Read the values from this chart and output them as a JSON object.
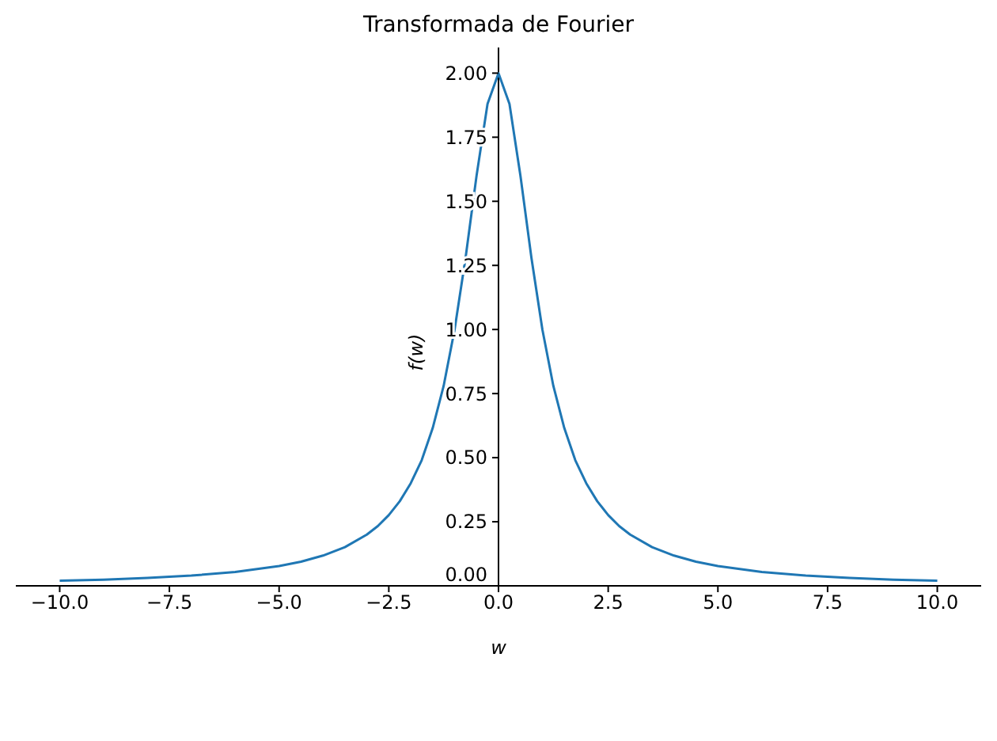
{
  "chart_data": {
    "type": "line",
    "title": "Transformada de Fourier",
    "xlabel": "w",
    "ylabel": "f(w)",
    "x": [
      -10,
      -9,
      -8,
      -7,
      -6,
      -5,
      -4.5,
      -4,
      -3.5,
      -3,
      -2.75,
      -2.5,
      -2.25,
      -2,
      -1.75,
      -1.5,
      -1.25,
      -1,
      -0.75,
      -0.5,
      -0.25,
      0,
      0.25,
      0.5,
      0.75,
      1,
      1.25,
      1.5,
      1.75,
      2,
      2.25,
      2.5,
      2.75,
      3,
      3.5,
      4,
      4.5,
      5,
      6,
      7,
      8,
      9,
      10
    ],
    "series": [
      {
        "color": "#1f77b4",
        "values": [
          0.02,
          0.024,
          0.031,
          0.04,
          0.054,
          0.077,
          0.094,
          0.118,
          0.151,
          0.2,
          0.233,
          0.276,
          0.33,
          0.4,
          0.49,
          0.615,
          0.78,
          1.0,
          1.28,
          1.6,
          1.88,
          2.0,
          1.88,
          1.6,
          1.28,
          1.0,
          0.78,
          0.615,
          0.49,
          0.4,
          0.33,
          0.276,
          0.233,
          0.2,
          0.151,
          0.118,
          0.094,
          0.077,
          0.054,
          0.04,
          0.031,
          0.024,
          0.02
        ]
      }
    ],
    "xlim": [
      -11,
      11
    ],
    "ylim": [
      0,
      2.1
    ],
    "xticks": [
      {
        "value": -10,
        "label": "−10.0"
      },
      {
        "value": -7.5,
        "label": "−7.5"
      },
      {
        "value": -5,
        "label": "−5.0"
      },
      {
        "value": -2.5,
        "label": "−2.5"
      },
      {
        "value": 0,
        "label": "0.0"
      },
      {
        "value": 2.5,
        "label": "2.5"
      },
      {
        "value": 5,
        "label": "5.0"
      },
      {
        "value": 7.5,
        "label": "7.5"
      },
      {
        "value": 10,
        "label": "10.0"
      }
    ],
    "yticks": [
      {
        "value": 0,
        "label": "0.00"
      },
      {
        "value": 0.25,
        "label": "0.25"
      },
      {
        "value": 0.5,
        "label": "0.50"
      },
      {
        "value": 0.75,
        "label": "0.75"
      },
      {
        "value": 1,
        "label": "1.00"
      },
      {
        "value": 1.25,
        "label": "1.25"
      },
      {
        "value": 1.5,
        "label": "1.50"
      },
      {
        "value": 1.75,
        "label": "1.75"
      },
      {
        "value": 2,
        "label": "2.00"
      }
    ],
    "grid": false,
    "legend": false,
    "marker": "none",
    "line_style": "solid"
  }
}
